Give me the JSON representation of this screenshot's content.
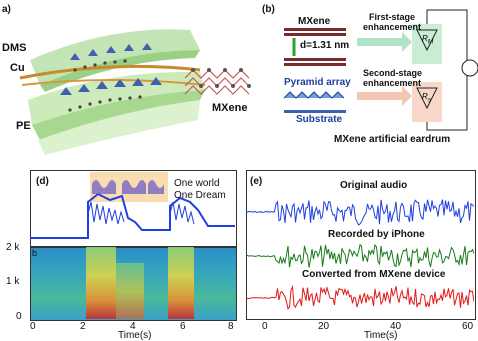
{
  "panel_a": {
    "tag": "a)",
    "labels": {
      "pdms": "DMS",
      "cu": "Cu",
      "pe": "PE",
      "mxene": "MXene"
    }
  },
  "panel_b": {
    "tag": "(b)",
    "mxene_label": "MXene",
    "d_label": "d=1.31 nm",
    "pyramid_label": "Pyramid array",
    "substrate_label": "Substrate",
    "first_stage": [
      "First-stage",
      "enhancement"
    ],
    "second_stage": [
      "Second-stage",
      "enhancement"
    ],
    "caption": "MXene artificial eardrum",
    "r1": "R",
    "r1_sub": "M",
    "r2": "R",
    "r2_sub": "s"
  },
  "panel_d": {
    "tag": "(d)",
    "phrase": [
      "One world",
      "One Dream"
    ],
    "y_ticks": [
      "2 k",
      "1 k",
      "0"
    ],
    "x_ticks": [
      "0",
      "2",
      "4",
      "6",
      "8"
    ],
    "xlabel": "Time(s)",
    "sub_tag": "b"
  },
  "panel_e": {
    "tag": "(e)",
    "traces": [
      {
        "label": "Original audio",
        "color": "#1f3fe0"
      },
      {
        "label": "Recorded by iPhone",
        "color": "#1a7a1a"
      },
      {
        "label": "Converted from MXene device",
        "color": "#e01818"
      }
    ],
    "x_ticks": [
      "0",
      "20",
      "40",
      "60"
    ],
    "xlabel": "Time(s)"
  },
  "colors": {
    "blue": "#1f3fe0",
    "green": "#1a7a1a",
    "red": "#e01818",
    "spectro_bg": "#3aa0c8"
  }
}
